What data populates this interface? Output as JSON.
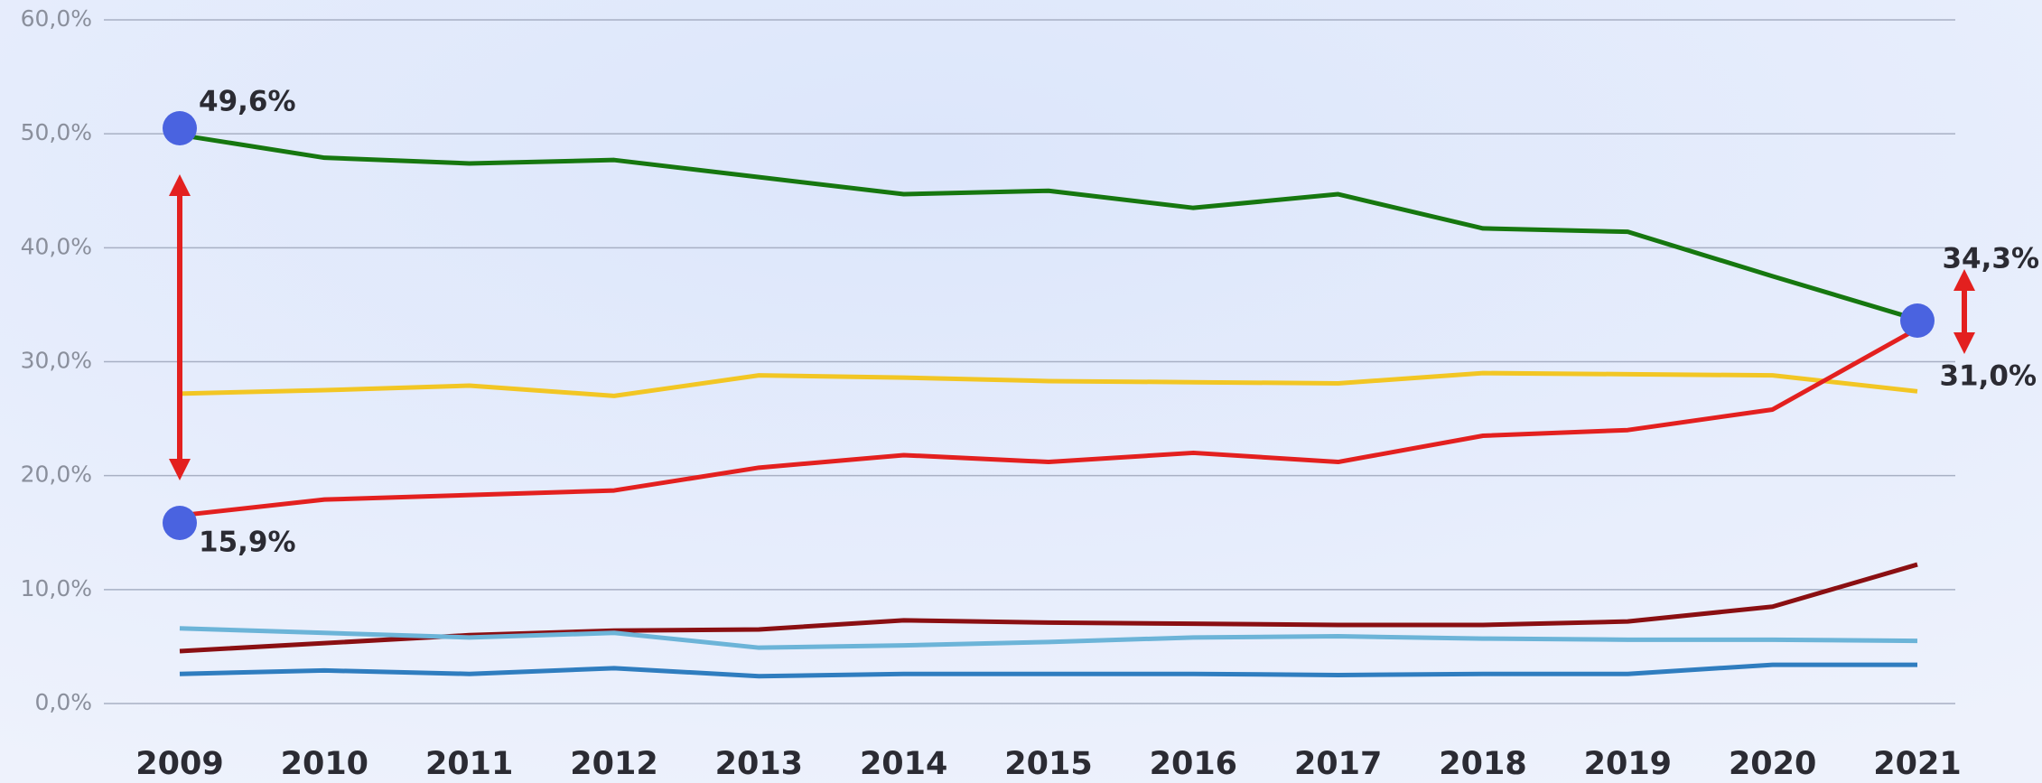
{
  "chart_data": {
    "type": "line",
    "x": [
      "2009",
      "2010",
      "2011",
      "2012",
      "2013",
      "2014",
      "2015",
      "2016",
      "2017",
      "2018",
      "2019",
      "2020",
      "2021"
    ],
    "series": [
      {
        "color": "#16770f",
        "values": [
          49.9,
          47.9,
          47.4,
          47.7,
          46.2,
          44.7,
          45.0,
          43.5,
          44.7,
          41.7,
          41.4,
          37.5,
          33.7
        ]
      },
      {
        "color": "#f2c624",
        "values": [
          27.2,
          27.5,
          27.9,
          27.0,
          28.8,
          28.6,
          28.3,
          28.2,
          28.1,
          29.0,
          28.9,
          28.8,
          27.4
        ]
      },
      {
        "color": "#e3201f",
        "values": [
          16.5,
          17.9,
          18.3,
          18.7,
          20.7,
          21.8,
          21.2,
          22.0,
          21.2,
          23.5,
          24.0,
          25.8,
          32.9
        ]
      },
      {
        "color": "#8a0f12",
        "values": [
          4.6,
          5.3,
          6.0,
          6.4,
          6.5,
          7.3,
          7.1,
          7.0,
          6.9,
          6.9,
          7.2,
          8.5,
          12.2
        ]
      },
      {
        "color": "#6cb4d8",
        "values": [
          6.6,
          6.2,
          5.8,
          6.2,
          4.9,
          5.1,
          5.4,
          5.8,
          5.9,
          5.7,
          5.6,
          5.6,
          5.5
        ]
      },
      {
        "color": "#2f7dbf",
        "values": [
          2.6,
          2.9,
          2.6,
          3.1,
          2.4,
          2.6,
          2.6,
          2.6,
          2.5,
          2.6,
          2.6,
          3.4,
          3.4
        ]
      }
    ],
    "ylim": [
      0,
      60
    ],
    "yticks": [
      {
        "value": 0,
        "label": "0,0%"
      },
      {
        "value": 10,
        "label": "10,0%"
      },
      {
        "value": 20,
        "label": "20,0%"
      },
      {
        "value": 30,
        "label": "30,0%"
      },
      {
        "value": 40,
        "label": "40,0%"
      },
      {
        "value": 50,
        "label": "50,0%"
      },
      {
        "value": 60,
        "label": "60,0%"
      }
    ],
    "grid": true,
    "annotations": [
      "49,6%",
      "15,9%",
      "34,3%",
      "31,0%"
    ]
  }
}
